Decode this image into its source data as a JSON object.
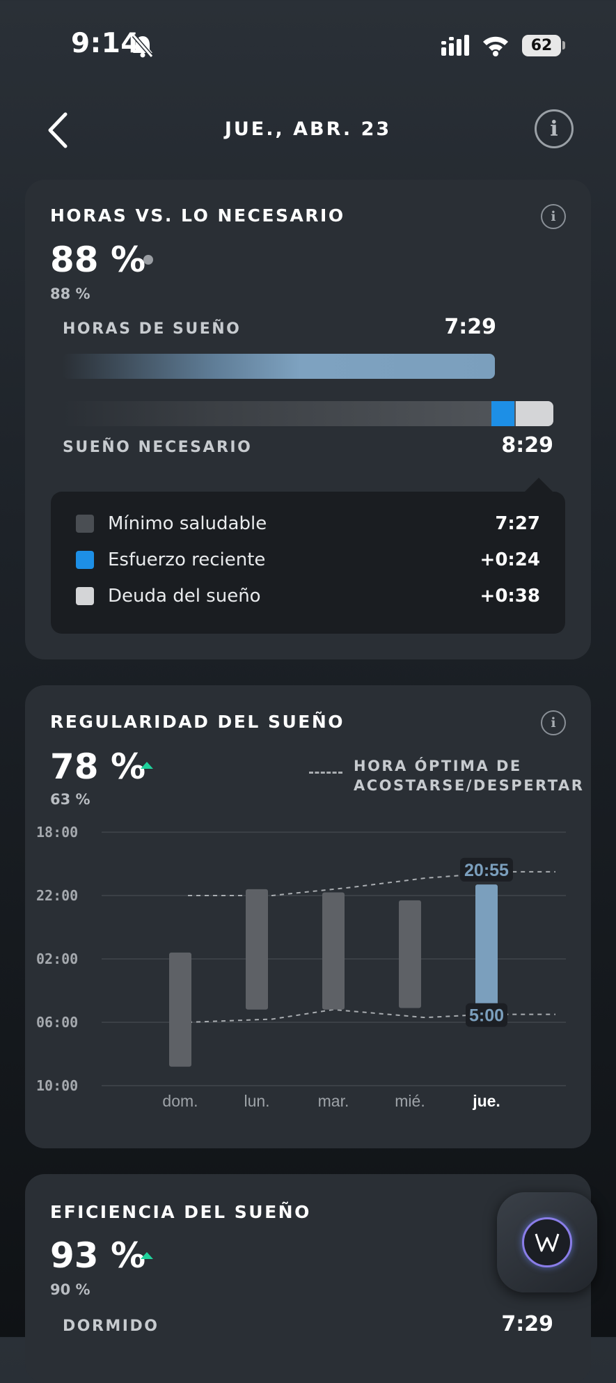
{
  "status_bar": {
    "time": "9:14",
    "battery": "62"
  },
  "header": {
    "title": "JUE., ABR. 23"
  },
  "hours_card": {
    "title": "HORAS VS. LO NECESARIO",
    "percent": "88 %",
    "sub_percent": "88 %",
    "hours_label": "HORAS DE SUEÑO",
    "hours_value": "7:29",
    "needed_label": "SUEÑO NECESARIO",
    "needed_value": "8:29",
    "legend": [
      {
        "label": "Mínimo saludable",
        "value": "7:27",
        "color": "#4a4e53"
      },
      {
        "label": "Esfuerzo reciente",
        "value": "+0:24",
        "color": "#1d8fe6"
      },
      {
        "label": "Deuda del sueño",
        "value": "+0:38",
        "color": "#d4d5d7"
      }
    ]
  },
  "regularity_card": {
    "title": "REGULARIDAD DEL SUEÑO",
    "percent": "78 %",
    "sub_percent": "63 %",
    "legend_line1": "HORA ÓPTIMA DE",
    "legend_line2": "ACOSTARSE/DESPERTAR"
  },
  "chart_data": {
    "type": "bar",
    "y_ticks": [
      "18:00",
      "22:00",
      "02:00",
      "06:00",
      "10:00"
    ],
    "categories": [
      "dom.",
      "lun.",
      "mar.",
      "mié.",
      "jue."
    ],
    "selected_category": "jue.",
    "bed_hours": [
      1.6,
      21.6,
      21.8,
      22.3,
      21.3
    ],
    "wake_hours": [
      8.8,
      5.2,
      5.2,
      5.1,
      5.1
    ],
    "optimal_bed_x": [
      0.1,
      1.2,
      2.2,
      3.2,
      4.3,
      4.9
    ],
    "optimal_bed_y": [
      22.0,
      22.0,
      21.5,
      20.9,
      20.5,
      20.5
    ],
    "optimal_wake_x": [
      0.1,
      1.2,
      2.0,
      3.2,
      4.0,
      4.9
    ],
    "optimal_wake_y": [
      6.0,
      5.8,
      5.2,
      5.7,
      5.5,
      5.5
    ],
    "highlight_bed_label": "20:55",
    "highlight_wake_label": "5:00",
    "colors": {
      "bar": "#5e6166",
      "selected": "#7b9fbd",
      "grid": "#41464c",
      "dash": "#a9adb1"
    }
  },
  "efficiency_card": {
    "title": "EFICIENCIA DEL SUEÑO",
    "percent": "93 %",
    "sub_percent": "90 %",
    "asleep_label": "DORMIDO",
    "asleep_value": "7:29"
  }
}
